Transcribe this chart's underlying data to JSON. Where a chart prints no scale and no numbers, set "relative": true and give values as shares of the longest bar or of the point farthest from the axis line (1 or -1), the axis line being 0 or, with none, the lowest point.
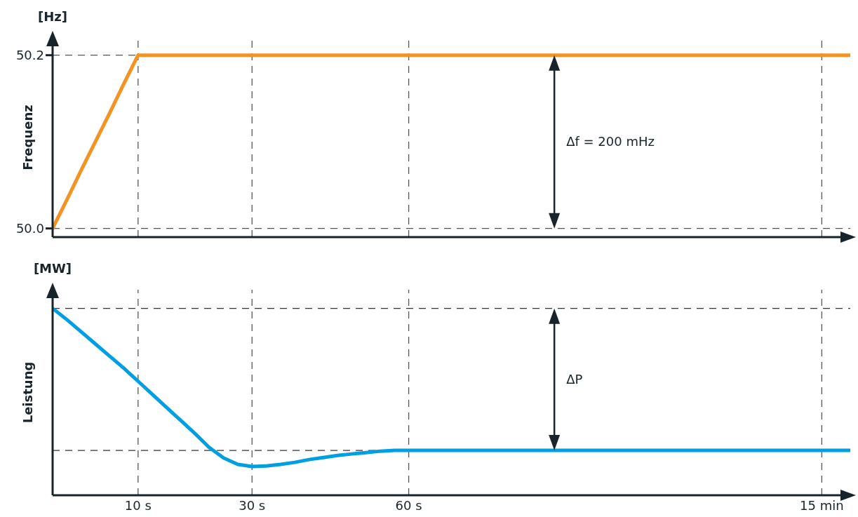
{
  "chart_data": [
    {
      "type": "line",
      "ylabel": "Frequenz",
      "annotations": [
        "[Hz]",
        "Δf = 200 mHz"
      ],
      "categories": [
        null,
        null,
        null,
        null,
        null,
        null,
        null,
        null,
        null,
        null,
        null,
        null,
        null,
        null,
        null,
        null,
        null,
        null,
        null,
        null,
        null,
        null,
        null,
        null,
        null,
        null,
        null,
        null,
        null,
        null,
        null,
        null,
        null,
        null,
        null,
        null,
        null,
        null,
        null,
        null,
        null,
        null,
        null,
        null,
        null,
        null,
        null,
        null,
        null,
        null,
        null,
        null,
        null,
        null,
        null,
        null,
        null
      ],
      "series": [
        {
          "color": "#f39322",
          "values": [
            50.0,
            50.033,
            50.067,
            50.1,
            50.133,
            50.167,
            50.2,
            50.2,
            50.2,
            50.2,
            50.2,
            50.2,
            50.2,
            50.2,
            50.2,
            50.2,
            50.2,
            50.2,
            50.2,
            50.2,
            50.2,
            50.2,
            50.2,
            50.2,
            50.2,
            50.2,
            50.2,
            50.2,
            50.2,
            50.2,
            50.2,
            50.2,
            50.2,
            50.2,
            50.2,
            50.2,
            50.2,
            50.2,
            50.2,
            50.2,
            50.2,
            50.2,
            50.2,
            50.2,
            50.2,
            50.2,
            50.2,
            50.2,
            50.2,
            50.2,
            50.2,
            50.2,
            50.2,
            50.2,
            50.2,
            50.2,
            50.2
          ]
        }
      ],
      "ylim": [
        49.99,
        50.22
      ],
      "yticks": [
        {
          "value": 50,
          "label": "50.0"
        },
        50.2
      ],
      "grid": true,
      "tick_labels": "y",
      "line_style": "solid"
    },
    {
      "type": "line",
      "ylabel": "Leistung",
      "relative": true,
      "annotations": [
        "[MW]",
        "ΔP"
      ],
      "categories": [
        null,
        null,
        null,
        null,
        null,
        null,
        "10 s",
        null,
        null,
        null,
        null,
        null,
        null,
        null,
        "30 s",
        null,
        null,
        null,
        null,
        null,
        null,
        null,
        null,
        null,
        null,
        "60 s",
        null,
        null,
        null,
        null,
        null,
        null,
        null,
        null,
        null,
        null,
        null,
        null,
        null,
        null,
        null,
        null,
        null,
        null,
        null,
        null,
        null,
        null,
        null,
        null,
        null,
        null,
        null,
        null,
        "15 min",
        null,
        null
      ],
      "series": [
        {
          "color": "#009fe3",
          "values": [
            1,
            0.94,
            0.875,
            0.81,
            0.745,
            0.68,
            0.61,
            0.54,
            0.47,
            0.4,
            0.33,
            0.255,
            0.2,
            0.165,
            0.154,
            0.157,
            0.165,
            0.176,
            0.191,
            0.202,
            0.213,
            0.221,
            0.228,
            0.236,
            0.24,
            0.24,
            0.24,
            0.24,
            0.24,
            0.24,
            0.24,
            0.24,
            0.24,
            0.24,
            0.24,
            0.24,
            0.24,
            0.24,
            0.24,
            0.24,
            0.24,
            0.24,
            0.24,
            0.24,
            0.24,
            0.24,
            0.24,
            0.24,
            0.24,
            0.24,
            0.24,
            0.24,
            0.24,
            0.24,
            0.24,
            0.24,
            0.24
          ]
        }
      ],
      "ref_lines": [
        {
          "axis": "y",
          "value": 1,
          "line_style": "dashed"
        },
        {
          "axis": "y",
          "value": 0.24,
          "line_style": "dashed"
        }
      ],
      "grid": "x",
      "tick_labels": "x",
      "line_style": "solid"
    }
  ]
}
